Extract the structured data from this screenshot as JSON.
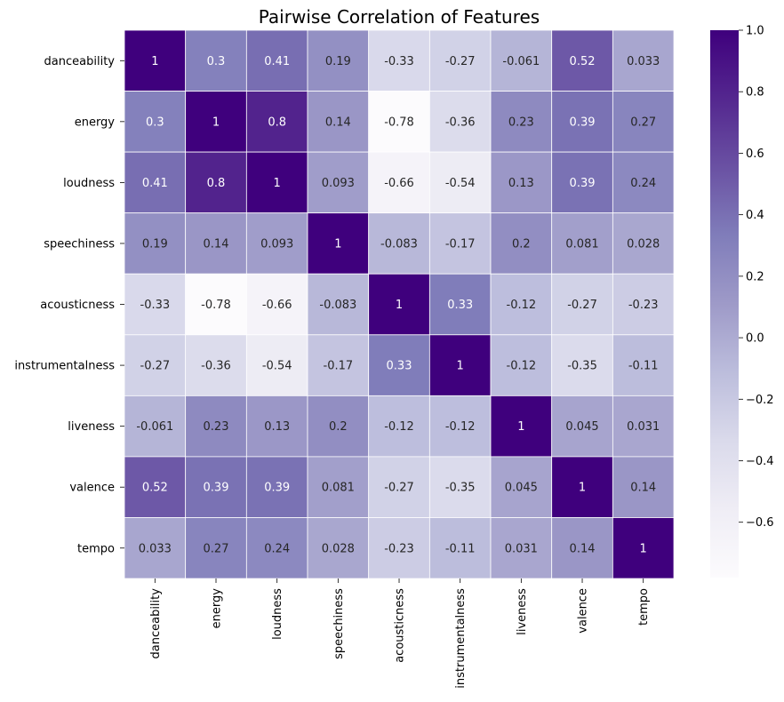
{
  "chart_data": {
    "type": "heatmap",
    "title": "Pairwise Correlation of Features",
    "xlabel": "",
    "ylabel": "",
    "x_categories": [
      "danceability",
      "energy",
      "loudness",
      "speechiness",
      "acousticness",
      "instrumentalness",
      "liveness",
      "valence",
      "tempo"
    ],
    "y_categories": [
      "danceability",
      "energy",
      "loudness",
      "speechiness",
      "acousticness",
      "instrumentalness",
      "liveness",
      "valence",
      "tempo"
    ],
    "values": [
      [
        1,
        0.3,
        0.41,
        0.19,
        -0.33,
        -0.27,
        -0.061,
        0.52,
        0.033
      ],
      [
        0.3,
        1,
        0.8,
        0.14,
        -0.78,
        -0.36,
        0.23,
        0.39,
        0.27
      ],
      [
        0.41,
        0.8,
        1,
        0.093,
        -0.66,
        -0.54,
        0.13,
        0.39,
        0.24
      ],
      [
        0.19,
        0.14,
        0.093,
        1,
        -0.083,
        -0.17,
        0.2,
        0.081,
        0.028
      ],
      [
        -0.33,
        -0.78,
        -0.66,
        -0.083,
        1,
        0.33,
        -0.12,
        -0.27,
        -0.23
      ],
      [
        -0.27,
        -0.36,
        -0.54,
        -0.17,
        0.33,
        1,
        -0.12,
        -0.35,
        -0.11
      ],
      [
        -0.061,
        0.23,
        0.13,
        0.2,
        -0.12,
        -0.12,
        1,
        0.045,
        0.031
      ],
      [
        0.52,
        0.39,
        0.39,
        0.081,
        -0.27,
        -0.35,
        0.045,
        1,
        0.14
      ],
      [
        0.033,
        0.27,
        0.24,
        0.028,
        -0.23,
        -0.11,
        0.031,
        0.14,
        1
      ]
    ],
    "annotations": [
      [
        "1",
        "0.3",
        "0.41",
        "0.19",
        "-0.33",
        "-0.27",
        "-0.061",
        "0.52",
        "0.033"
      ],
      [
        "0.3",
        "1",
        "0.8",
        "0.14",
        "-0.78",
        "-0.36",
        "0.23",
        "0.39",
        "0.27"
      ],
      [
        "0.41",
        "0.8",
        "1",
        "0.093",
        "-0.66",
        "-0.54",
        "0.13",
        "0.39",
        "0.24"
      ],
      [
        "0.19",
        "0.14",
        "0.093",
        "1",
        "-0.083",
        "-0.17",
        "0.2",
        "0.081",
        "0.028"
      ],
      [
        "-0.33",
        "-0.78",
        "-0.66",
        "-0.083",
        "1",
        "0.33",
        "-0.12",
        "-0.27",
        "-0.23"
      ],
      [
        "-0.27",
        "-0.36",
        "-0.54",
        "-0.17",
        "0.33",
        "1",
        "-0.12",
        "-0.35",
        "-0.11"
      ],
      [
        "-0.061",
        "0.23",
        "0.13",
        "0.2",
        "-0.12",
        "-0.12",
        "1",
        "0.045",
        "0.031"
      ],
      [
        "0.52",
        "0.39",
        "0.39",
        "0.081",
        "-0.27",
        "-0.35",
        "0.045",
        "1",
        "0.14"
      ],
      [
        "0.033",
        "0.27",
        "0.24",
        "0.028",
        "-0.23",
        "-0.11",
        "0.031",
        "0.14",
        "1"
      ]
    ],
    "colormap": "Purples",
    "colormap_stops": [
      "#fcfbfd",
      "#efedf5",
      "#dadaeb",
      "#bcbddc",
      "#9e9ac8",
      "#807dba",
      "#6a51a3",
      "#54278f",
      "#3f007d"
    ],
    "vmin": -0.78,
    "vmax": 1,
    "colorbar_ticks": [
      1.0,
      0.8,
      0.6,
      0.4,
      0.2,
      0.0,
      -0.2,
      -0.4,
      -0.6
    ],
    "colorbar_tick_labels": [
      "1.0",
      "0.8",
      "0.6",
      "0.4",
      "0.2",
      "0.0",
      "−0.2",
      "−0.4",
      "−0.6"
    ],
    "cell_border_color": "#ffffff",
    "grid": false,
    "legend": "colorbar-right"
  }
}
